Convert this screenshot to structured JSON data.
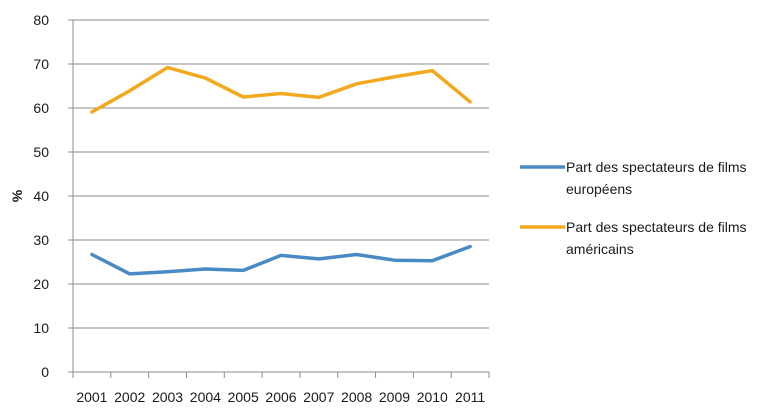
{
  "chart_data": {
    "type": "line",
    "title": "",
    "xlabel": "",
    "ylabel": "%",
    "ylim": [
      0,
      80
    ],
    "yticks": [
      0,
      10,
      20,
      30,
      40,
      50,
      60,
      70,
      80
    ],
    "categories": [
      "2001",
      "2002",
      "2003",
      "2004",
      "2005",
      "2006",
      "2007",
      "2008",
      "2009",
      "2010",
      "2011"
    ],
    "grid": "horizontal",
    "legend_position": "right",
    "series": [
      {
        "name": "Part des spectateurs de films européens",
        "name_lines": [
          "Part des spectateurs de films",
          "européens"
        ],
        "color": "#4a8ac4",
        "values": [
          26.7,
          22.3,
          22.8,
          23.4,
          23.1,
          26.5,
          25.7,
          26.7,
          25.4,
          25.3,
          28.5
        ]
      },
      {
        "name": "Part des spectateurs de films américains",
        "name_lines": [
          "Part des spectateurs de films",
          "américains"
        ],
        "color": "#f4a81c",
        "values": [
          59.1,
          63.9,
          69.2,
          66.8,
          62.5,
          63.3,
          62.4,
          65.5,
          67.1,
          68.5,
          61.4
        ]
      }
    ]
  }
}
